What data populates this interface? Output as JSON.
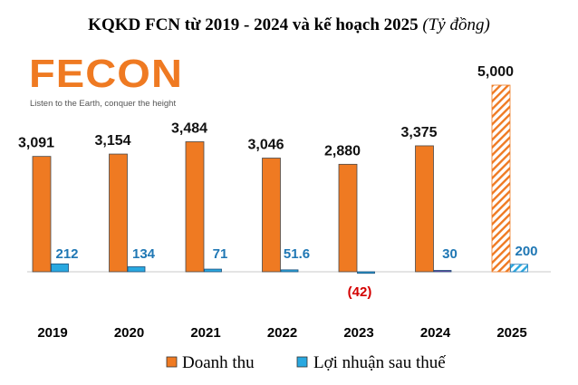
{
  "title_main": "KQKD FCN từ 2019 - 2024 và kế hoạch 2025",
  "title_note": "(Tỷ đồng)",
  "logo": {
    "text": "FECON",
    "tagline": "Listen to the Earth, conquer the height"
  },
  "colors": {
    "revenue": "#ef7a22",
    "profit": "#29a8e0",
    "negative_label": "#d40000",
    "profit_label": "#1f77b4",
    "brand": "#ef7a22"
  },
  "chart_data": {
    "type": "bar",
    "title": "KQKD FCN từ 2019 - 2024 và kế hoạch 2025 (Tỷ đồng)",
    "categories": [
      "2019",
      "2020",
      "2021",
      "2022",
      "2023",
      "2024",
      "2025"
    ],
    "series": [
      {
        "name": "Doanh thu",
        "values": [
          3091,
          3154,
          3484,
          3046,
          2880,
          3375,
          5000
        ],
        "labels": [
          "3,091",
          "3,154",
          "3,484",
          "3,046",
          "2,880",
          "3,375",
          "5,000"
        ]
      },
      {
        "name": "Lợi nhuận sau thuế",
        "values": [
          212,
          134,
          71,
          51.6,
          -42,
          30,
          200
        ],
        "labels": [
          "212",
          "134",
          "71",
          "51.6",
          "(42)",
          "30",
          "200"
        ]
      }
    ],
    "plan_category": "2025",
    "legend_position": "bottom",
    "grid": false
  }
}
